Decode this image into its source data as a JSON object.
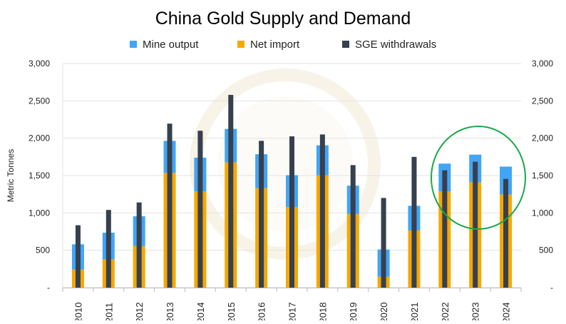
{
  "chart_data": {
    "type": "bar",
    "title": "China Gold Supply and Demand",
    "ylabel": "Metric Tonnes",
    "xlabel": "",
    "ylim": [
      0,
      3000
    ],
    "yticks": [
      0,
      500,
      1000,
      1500,
      2000,
      2500,
      3000
    ],
    "ytick_labels": [
      "-",
      "500",
      "1,000",
      "1,500",
      "2,000",
      "2,500",
      "3,000"
    ],
    "grid": true,
    "legend_position": "top",
    "categories": [
      "2010",
      "2011",
      "2012",
      "2013",
      "2014",
      "2015",
      "2016",
      "2017",
      "2018",
      "2019",
      "2020",
      "2021",
      "2022",
      "2023",
      "2024"
    ],
    "series": [
      {
        "name": "Mine output",
        "color": "#42a5f5",
        "stacked_on": "Net import",
        "values": [
          340,
          360,
          400,
          430,
          450,
          450,
          455,
          425,
          400,
          380,
          365,
          330,
          370,
          370,
          375
        ]
      },
      {
        "name": "Net import",
        "color": "#f5a800",
        "values": [
          240,
          375,
          555,
          1535,
          1290,
          1675,
          1330,
          1080,
          1505,
          985,
          145,
          765,
          1290,
          1410,
          1245
        ]
      },
      {
        "name": "SGE withdrawals",
        "color": "#36404f",
        "values": [
          835,
          1040,
          1140,
          2195,
          2100,
          2580,
          1965,
          2025,
          2050,
          1640,
          1200,
          1750,
          1570,
          1685,
          1455
        ]
      }
    ],
    "annotation": {
      "type": "circle-highlight",
      "color": "#1aa84a",
      "categories": [
        "2022",
        "2023",
        "2024"
      ]
    }
  }
}
